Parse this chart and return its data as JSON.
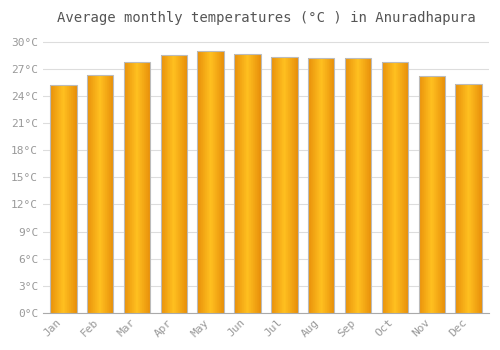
{
  "title": "Average monthly temperatures (°C ) in Anuradhapura",
  "months": [
    "Jan",
    "Feb",
    "Mar",
    "Apr",
    "May",
    "Jun",
    "Jul",
    "Aug",
    "Sep",
    "Oct",
    "Nov",
    "Dec"
  ],
  "values": [
    25.3,
    26.4,
    27.8,
    28.6,
    29.0,
    28.7,
    28.4,
    28.3,
    28.2,
    27.8,
    26.3,
    25.4
  ],
  "bar_color_center": "#FFB800",
  "bar_color_edge_side": "#E8900A",
  "bar_border_color": "#BBBBBB",
  "background_color": "#FFFFFF",
  "grid_color": "#DDDDDD",
  "yticks": [
    0,
    3,
    6,
    9,
    12,
    15,
    18,
    21,
    24,
    27,
    30
  ],
  "ylim": [
    0,
    31
  ],
  "title_fontsize": 10,
  "tick_fontsize": 8,
  "tick_color": "#999999",
  "font_family": "monospace"
}
